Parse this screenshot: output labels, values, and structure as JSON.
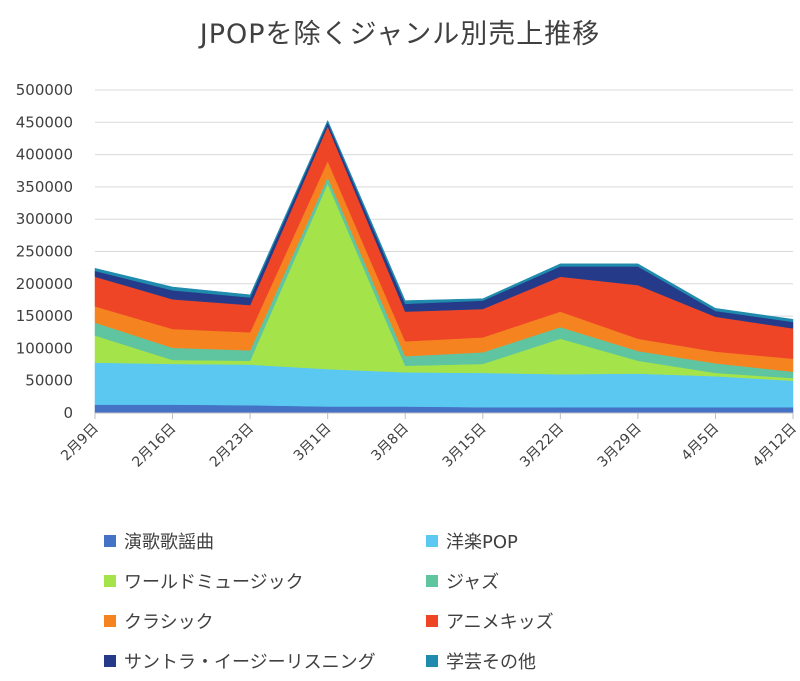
{
  "chart_data": {
    "type": "area",
    "stacked": true,
    "title": "JPOPを除くジャンル別売上推移",
    "xlabel": "",
    "ylabel": "",
    "ylim": [
      0,
      500000
    ],
    "yticks": [
      0,
      50000,
      100000,
      150000,
      200000,
      250000,
      300000,
      350000,
      400000,
      450000,
      500000
    ],
    "categories": [
      "2月9日",
      "2月16日",
      "2月23日",
      "3月1日",
      "3月8日",
      "3月15日",
      "3月22日",
      "3月29日",
      "4月5日",
      "4月12日"
    ],
    "grid": true,
    "legend_position": "bottom",
    "series": [
      {
        "name": "演歌歌謡曲",
        "color": "#4472c4",
        "values": [
          13000,
          13000,
          12000,
          10000,
          10000,
          9000,
          9000,
          9000,
          9000,
          9000
        ]
      },
      {
        "name": "洋楽POP",
        "color": "#5bc8f2",
        "values": [
          65000,
          63000,
          63000,
          58000,
          53000,
          53000,
          51000,
          52000,
          48000,
          41000
        ]
      },
      {
        "name": "ワールドミュージック",
        "color": "#a5e34b",
        "values": [
          42000,
          6000,
          6000,
          287000,
          10000,
          14000,
          55000,
          20000,
          5000,
          4000
        ]
      },
      {
        "name": "ジャズ",
        "color": "#5ec5a0",
        "values": [
          20000,
          19000,
          16000,
          10000,
          15000,
          18000,
          18000,
          15000,
          15000,
          10000
        ]
      },
      {
        "name": "クラシック",
        "color": "#f58420",
        "values": [
          25000,
          29000,
          28000,
          25000,
          23000,
          23000,
          24000,
          19000,
          18000,
          20000
        ]
      },
      {
        "name": "アニメキッズ",
        "color": "#ee4527",
        "values": [
          46000,
          46000,
          42000,
          54000,
          46000,
          44000,
          54000,
          83000,
          54000,
          47000
        ]
      },
      {
        "name": "サントラ・イージーリスニング",
        "color": "#253b8a",
        "values": [
          9000,
          14000,
          12000,
          6000,
          12000,
          13000,
          16000,
          29000,
          9000,
          10000
        ]
      },
      {
        "name": "学芸その他",
        "color": "#1f8bad",
        "values": [
          4000,
          5000,
          4000,
          3000,
          5000,
          3000,
          4000,
          4000,
          4000,
          4000
        ]
      }
    ]
  }
}
